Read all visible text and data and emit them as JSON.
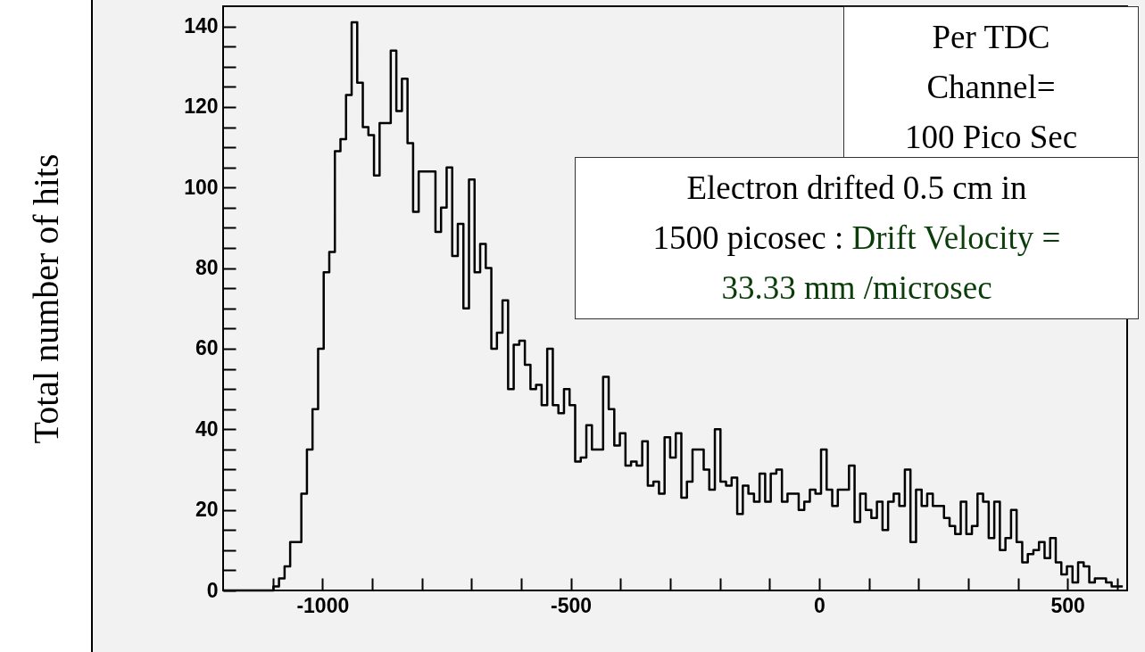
{
  "chart_data": {
    "type": "histogram",
    "ylabel": "Total number of hits",
    "color": "#000000",
    "xlim": [
      -1200,
      620
    ],
    "xticks": [
      {
        "value": -1100,
        "label": null
      },
      -1000,
      {
        "value": -900,
        "label": null
      },
      {
        "value": -800,
        "label": null
      },
      {
        "value": -700,
        "label": null
      },
      {
        "value": -600,
        "label": null
      },
      -500,
      {
        "value": -400,
        "label": null
      },
      {
        "value": -300,
        "label": null
      },
      {
        "value": -200,
        "label": null
      },
      {
        "value": -100,
        "label": null
      },
      0,
      {
        "value": 100,
        "label": null
      },
      {
        "value": 200,
        "label": null
      },
      {
        "value": 300,
        "label": null
      },
      {
        "value": 400,
        "label": null
      },
      500,
      {
        "value": 600,
        "label": null
      }
    ],
    "ylim": [
      0,
      145
    ],
    "yticks": [
      0,
      {
        "value": 5,
        "label": null
      },
      {
        "value": 10,
        "label": null
      },
      {
        "value": 15,
        "label": null
      },
      20,
      {
        "value": 25,
        "label": null
      },
      {
        "value": 30,
        "label": null
      },
      {
        "value": 35,
        "label": null
      },
      40,
      {
        "value": 45,
        "label": null
      },
      {
        "value": 50,
        "label": null
      },
      {
        "value": 55,
        "label": null
      },
      60,
      {
        "value": 65,
        "label": null
      },
      {
        "value": 70,
        "label": null
      },
      {
        "value": 75,
        "label": null
      },
      80,
      {
        "value": 85,
        "label": null
      },
      {
        "value": 90,
        "label": null
      },
      {
        "value": 95,
        "label": null
      },
      100,
      {
        "value": 105,
        "label": null
      },
      {
        "value": 110,
        "label": null
      },
      {
        "value": 115,
        "label": null
      },
      120,
      {
        "value": 125,
        "label": null
      },
      {
        "value": 130,
        "label": null
      },
      {
        "value": 135,
        "label": null
      },
      140
    ],
    "bins": [
      -1200,
      -1188.75,
      -1177.5,
      -1166.25,
      -1155,
      -1143.75,
      -1132.5,
      -1121.25,
      -1110,
      -1098.75,
      -1087.5,
      -1076.25,
      -1065,
      -1053.75,
      -1042.5,
      -1031.25,
      -1020,
      -1008.75,
      -997.5,
      -986.25,
      -975,
      -963.75,
      -952.5,
      -941.25,
      -930,
      -918.75,
      -907.5,
      -896.25,
      -885,
      -873.75,
      -862.5,
      -851.25,
      -840,
      -828.75,
      -817.5,
      -806.25,
      -795,
      -783.75,
      -772.5,
      -761.25,
      -750,
      -738.75,
      -727.5,
      -716.25,
      -705,
      -693.75,
      -682.5,
      -671.25,
      -660,
      -648.75,
      -637.5,
      -626.25,
      -615,
      -603.75,
      -592.5,
      -581.25,
      -570,
      -558.75,
      -547.5,
      -536.25,
      -525,
      -513.75,
      -502.5,
      -491.25,
      -480,
      -468.75,
      -457.5,
      -446.25,
      -435,
      -423.75,
      -412.5,
      -401.25,
      -390,
      -378.75,
      -367.5,
      -356.25,
      -345,
      -333.75,
      -322.5,
      -311.25,
      -300,
      -288.75,
      -277.5,
      -266.25,
      -255,
      -243.75,
      -232.5,
      -221.25,
      -210,
      -198.75,
      -187.5,
      -176.25,
      -165,
      -153.75,
      -142.5,
      -131.25,
      -120,
      -108.75,
      -97.5,
      -86.25,
      -75,
      -63.75,
      -52.5,
      -41.25,
      -30,
      -18.75,
      -7.5,
      3.75,
      15,
      26.25,
      37.5,
      48.75,
      60,
      71.25,
      82.5,
      93.75,
      105,
      116.25,
      127.5,
      138.75,
      150,
      161.25,
      172.5,
      183.75,
      195,
      206.25,
      217.5,
      228.75,
      240,
      251.25,
      262.5,
      273.75,
      285,
      296.25,
      307.5,
      318.75,
      330,
      341.25,
      352.5,
      363.75,
      375,
      386.25,
      397.5,
      408.75,
      420,
      431.25,
      442.5,
      453.75,
      465,
      476.25,
      487.5,
      498.75,
      510,
      521.25,
      532.5,
      543.75,
      555,
      566.25,
      577.5,
      588.75,
      600,
      611.25
    ],
    "values": [
      0,
      0,
      0,
      0,
      0,
      0,
      0,
      0,
      0,
      1,
      3,
      6,
      12,
      12,
      24,
      35,
      45,
      60,
      79,
      84,
      109,
      112,
      123,
      141,
      126,
      115,
      113,
      103,
      116,
      116,
      134,
      119,
      127,
      111,
      94,
      104,
      104,
      104,
      89,
      95,
      105,
      83,
      91,
      70,
      102,
      79,
      86,
      80,
      60,
      64,
      72,
      50,
      61,
      62,
      56,
      50,
      51,
      46,
      60,
      46,
      44,
      50,
      46,
      32,
      33,
      41,
      35,
      35,
      53,
      45,
      36,
      39,
      31,
      32,
      31,
      37,
      26,
      27,
      24,
      38,
      33,
      39,
      23,
      27,
      35,
      35,
      30,
      25,
      40,
      27,
      26,
      28,
      19,
      26,
      24,
      22,
      29,
      22,
      29,
      30,
      22,
      24,
      24,
      20,
      22,
      25,
      24,
      35,
      25,
      21,
      25,
      25,
      31,
      17,
      24,
      20,
      18,
      22,
      15,
      22,
      24,
      21,
      30,
      12,
      25,
      21,
      24,
      21,
      21,
      18,
      16,
      14,
      22,
      14,
      16,
      24,
      22,
      13,
      22,
      10,
      13,
      20,
      12,
      7,
      9,
      10,
      12,
      8,
      13,
      7,
      4,
      6,
      2,
      7,
      6,
      2,
      3,
      3,
      2,
      1,
      1
    ],
    "annotations": [
      "Per TDC",
      "Channel=",
      "100 Pico Sec",
      "Electron drifted 0.5 cm in",
      "1500 picosec :",
      "Drift Velocity =",
      "33.33 mm /microsec"
    ]
  }
}
